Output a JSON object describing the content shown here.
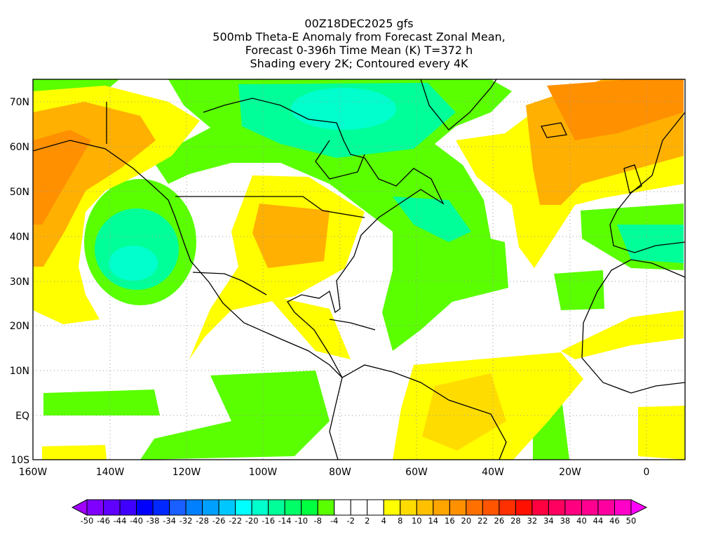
{
  "title": {
    "line1": "00Z18DEC2025 gfs",
    "line2": "500mb Theta-E Anomaly from Forecast Zonal Mean,",
    "line3": "Forecast 0-396h Time Mean (K) T=372 h",
    "line4": "Shading every 2K; Contoured every 4K"
  },
  "axes": {
    "lat_labels": [
      "70N",
      "60N",
      "50N",
      "40N",
      "30N",
      "20N",
      "10N",
      "EQ",
      "10S"
    ],
    "lon_labels": [
      "160W",
      "140W",
      "120W",
      "100W",
      "80W",
      "60W",
      "40W",
      "20W",
      "0"
    ]
  },
  "colorbar": {
    "labels": [
      "-50",
      "-46",
      "-44",
      "-40",
      "-38",
      "-34",
      "-32",
      "-28",
      "-26",
      "-22",
      "-20",
      "-16",
      "-14",
      "-10",
      "-8",
      "-4",
      "-2",
      "2",
      "4",
      "8",
      "10",
      "14",
      "16",
      "20",
      "22",
      "26",
      "28",
      "32",
      "34",
      "38",
      "40",
      "44",
      "46",
      "50"
    ],
    "low_arrow_color": "#a000ff",
    "high_arrow_color": "#ff00ff",
    "colors": [
      "#8000ff",
      "#6000ff",
      "#4000ff",
      "#0000ff",
      "#0028ff",
      "#1a5fff",
      "#0080ff",
      "#00a0ff",
      "#00c8ff",
      "#00ffff",
      "#00ffcc",
      "#00ff99",
      "#00ff66",
      "#00ff40",
      "#5aff00",
      "#ffffff",
      "#ffffff",
      "#ffffff",
      "#ffff00",
      "#ffdc00",
      "#ffc000",
      "#ffa500",
      "#ff9000",
      "#ff7000",
      "#ff5500",
      "#ff3000",
      "#ff1000",
      "#ff0040",
      "#ff0060",
      "#ff0080",
      "#ff0090",
      "#ff00a0",
      "#ff00c8"
    ]
  },
  "shading_colors": {
    "green": "#5aff00",
    "green2": "#00ff66",
    "teal": "#00ffaa",
    "cyan": "#00ffdc",
    "yellow": "#ffff00",
    "gold": "#ffdc00",
    "orange": "#ffb000",
    "orange2": "#ff9000"
  }
}
